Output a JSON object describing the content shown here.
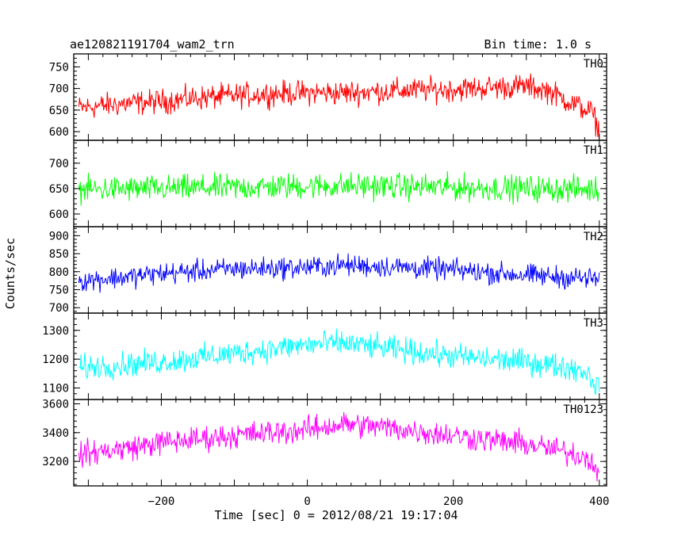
{
  "header": {
    "title": "ae120821191704_wam2_trn",
    "bin_time": "Bin time: 1.0 s"
  },
  "chart_data": {
    "type": "line",
    "xlabel": "Time [sec] 0 = 2012/08/21 19:17:04",
    "ylabel": "Counts/sec",
    "xlim": [
      -320,
      410
    ],
    "x_ticks": [
      -200,
      0,
      200,
      400
    ],
    "x_tick_labels": [
      "−200",
      "0",
      "200",
      "400"
    ],
    "x_range": [
      -313,
      400
    ],
    "series": [
      {
        "name": "TH0",
        "color": "#ff0000",
        "ylim": [
          580,
          780
        ],
        "y_ticks": [
          600,
          650,
          700,
          750
        ],
        "trend_x": [
          -313,
          -250,
          -200,
          -150,
          -100,
          -50,
          0,
          50,
          100,
          150,
          200,
          250,
          300,
          330,
          360,
          390,
          400
        ],
        "trend_y": [
          655,
          665,
          670,
          678,
          683,
          688,
          690,
          690,
          693,
          696,
          698,
          702,
          705,
          695,
          668,
          645,
          600
        ],
        "noise_amp": 42
      },
      {
        "name": "TH1",
        "color": "#00ff00",
        "ylim": [
          575,
          745
        ],
        "y_ticks": [
          600,
          650,
          700
        ],
        "trend_x": [
          -313,
          -200,
          -100,
          0,
          100,
          200,
          300,
          400
        ],
        "trend_y": [
          648,
          650,
          652,
          655,
          655,
          652,
          650,
          648
        ],
        "noise_amp": 38
      },
      {
        "name": "TH2",
        "color": "#0000ff",
        "ylim": [
          685,
          925
        ],
        "y_ticks": [
          700,
          750,
          800,
          850,
          900
        ],
        "trend_x": [
          -313,
          -250,
          -200,
          -100,
          0,
          50,
          100,
          200,
          300,
          400
        ],
        "trend_y": [
          775,
          785,
          795,
          808,
          812,
          818,
          815,
          805,
          790,
          780
        ],
        "noise_amp": 45
      },
      {
        "name": "TH3",
        "color": "#00ffff",
        "ylim": [
          1060,
          1360
        ],
        "y_ticks": [
          1100,
          1200,
          1300
        ],
        "trend_x": [
          -313,
          -200,
          -100,
          0,
          50,
          100,
          200,
          300,
          350,
          380,
          400
        ],
        "trend_y": [
          1170,
          1190,
          1220,
          1250,
          1255,
          1240,
          1210,
          1190,
          1175,
          1160,
          1100
        ],
        "noise_amp": 65
      },
      {
        "name": "TH0123",
        "color": "#ff00ff",
        "ylim": [
          3030,
          3630
        ],
        "y_ticks": [
          3200,
          3400,
          3600
        ],
        "trend_x": [
          -313,
          -250,
          -200,
          -100,
          0,
          50,
          100,
          200,
          300,
          350,
          390,
          400
        ],
        "trend_y": [
          3250,
          3290,
          3330,
          3380,
          3420,
          3460,
          3440,
          3380,
          3320,
          3270,
          3220,
          3060
        ],
        "noise_amp": 130
      }
    ]
  }
}
